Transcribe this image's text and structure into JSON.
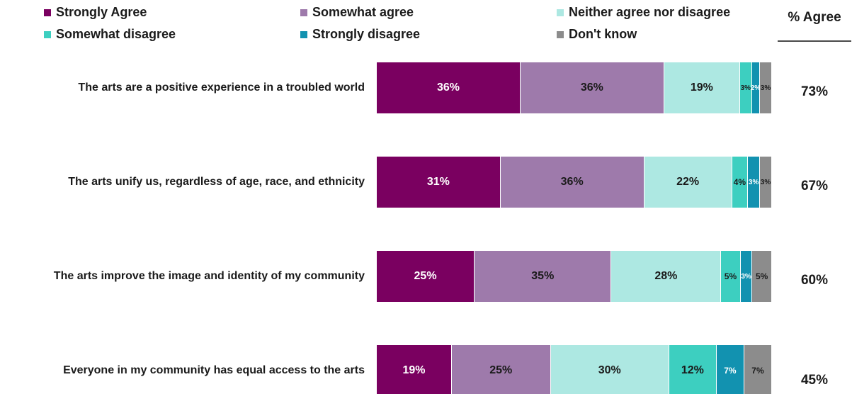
{
  "chart_data": {
    "type": "bar",
    "orientation": "horizontal-stacked-100",
    "categories": [
      "The arts are a positive experience in a troubled world",
      "The arts unify us, regardless of age, race, and ethnicity",
      "The arts improve the image and identity of my community",
      "Everyone in my community has equal access to the arts"
    ],
    "series": [
      {
        "name": "Strongly Agree",
        "color": "#7a0060",
        "values": [
          36,
          31,
          25,
          19
        ],
        "labels": [
          "36%",
          "31%",
          "25%",
          "19%"
        ]
      },
      {
        "name": "Somewhat agree",
        "color": "#9e7aab",
        "values": [
          36,
          36,
          35,
          25
        ],
        "labels": [
          "36%",
          "36%",
          "35%",
          "25%"
        ]
      },
      {
        "name": "Neither agree nor disagree",
        "color": "#ade8e2",
        "values": [
          19,
          22,
          28,
          30
        ],
        "labels": [
          "19%",
          "22%",
          "28%",
          "30%"
        ]
      },
      {
        "name": "Somewhat disagree",
        "color": "#3dcfc0",
        "values": [
          3,
          4,
          5,
          12
        ],
        "labels": [
          "3%",
          "4%",
          "5%",
          "12%"
        ]
      },
      {
        "name": "Strongly disagree",
        "color": "#1292b0",
        "values": [
          2,
          3,
          3,
          7
        ],
        "labels": [
          "2%",
          "3%",
          "3%",
          "7%"
        ]
      },
      {
        "name": "Don't know",
        "color": "#8c8c8c",
        "values": [
          3,
          3,
          5,
          7
        ],
        "labels": [
          "3%",
          "3%",
          "5%",
          "7%"
        ]
      }
    ],
    "agree_header": "% Agree",
    "agree_values": [
      "73%",
      "67%",
      "60%",
      "45%"
    ],
    "legend_position": "top",
    "grid": false
  }
}
